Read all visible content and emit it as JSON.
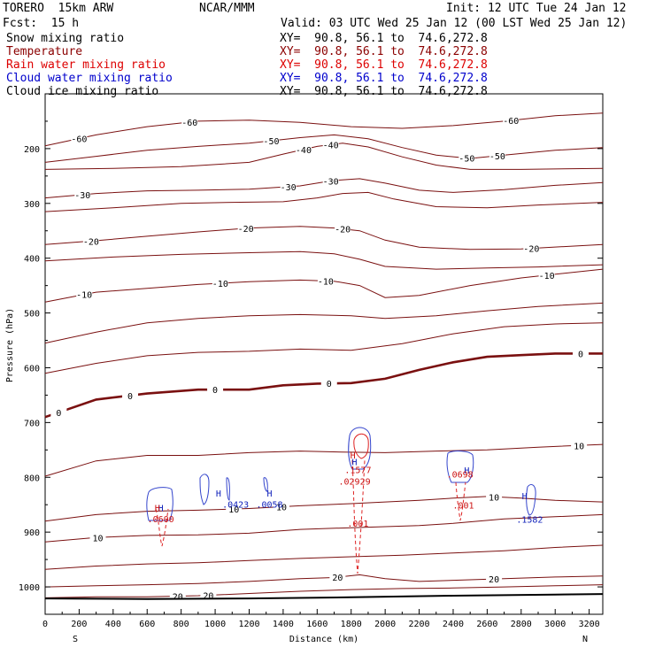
{
  "header": {
    "model": "TORERO  15km ARW",
    "center": "NCAR/MMM",
    "init": "Init: 12 UTC Tue 24 Jan 12",
    "fcst": "Fcst:  15 h",
    "valid": "Valid: 03 UTC Wed 25 Jan 12 (00 LST Wed 25 Jan 12)"
  },
  "fields": [
    {
      "label": "Snow mixing ratio",
      "xy": "XY=  90.8, 56.1 to  74.6,272.8",
      "color": "#000000"
    },
    {
      "label": "Temperature",
      "xy": "XY=  90.8, 56.1 to  74.6,272.8",
      "color": "#8b0000"
    },
    {
      "label": "Rain water mixing ratio",
      "xy": "XY=  90.8, 56.1 to  74.6,272.8",
      "color": "#dd0000"
    },
    {
      "label": "Cloud water mixing ratio",
      "xy": "XY=  90.8, 56.1 to  74.6,272.8",
      "color": "#0000cc"
    },
    {
      "label": "Cloud ice mixing ratio",
      "xy": "XY=  90.8, 56.1 to  74.6,272.8",
      "color": "#000000"
    }
  ],
  "chart_data": {
    "type": "line",
    "xlabel": "Distance (km)",
    "ylabel": "Pressure (hPa)",
    "xlim": [
      0,
      3280
    ],
    "ylim": [
      1050,
      100
    ],
    "xticks": [
      0,
      200,
      400,
      600,
      800,
      1000,
      1200,
      1400,
      1600,
      1800,
      2000,
      2200,
      2400,
      2600,
      2800,
      3000,
      3200
    ],
    "yticks": [
      200,
      300,
      400,
      500,
      600,
      700,
      800,
      900,
      1000
    ],
    "ends": {
      "left": "S",
      "right": "N"
    },
    "temperature_contours": [
      {
        "label": "-60",
        "points": [
          [
            0,
            195
          ],
          [
            300,
            175
          ],
          [
            600,
            160
          ],
          [
            900,
            150
          ],
          [
            1200,
            148
          ],
          [
            1500,
            152
          ],
          [
            1800,
            160
          ],
          [
            2100,
            163
          ],
          [
            2400,
            158
          ],
          [
            2700,
            150
          ],
          [
            3000,
            140
          ],
          [
            3280,
            135
          ]
        ],
        "labels": [
          [
            200,
            "-60"
          ],
          [
            850,
            "-60"
          ],
          [
            2740,
            "-60"
          ]
        ]
      },
      {
        "label": "-50",
        "points": [
          [
            0,
            225
          ],
          [
            300,
            214
          ],
          [
            600,
            203
          ],
          [
            900,
            196
          ],
          [
            1200,
            190
          ],
          [
            1500,
            180
          ],
          [
            1700,
            175
          ],
          [
            1900,
            182
          ],
          [
            2100,
            198
          ],
          [
            2300,
            212
          ],
          [
            2500,
            218
          ],
          [
            2700,
            212
          ],
          [
            3000,
            203
          ],
          [
            3280,
            198
          ]
        ],
        "labels": [
          [
            1330,
            "-50"
          ],
          [
            2480,
            "-50"
          ],
          [
            2660,
            "-50"
          ]
        ]
      },
      {
        "label": "-40",
        "points": [
          [
            0,
            238
          ],
          [
            400,
            236
          ],
          [
            800,
            233
          ],
          [
            1200,
            225
          ],
          [
            1400,
            210
          ],
          [
            1600,
            196
          ],
          [
            1750,
            190
          ],
          [
            1900,
            197
          ],
          [
            2100,
            215
          ],
          [
            2300,
            230
          ],
          [
            2500,
            238
          ],
          [
            2800,
            238
          ],
          [
            3280,
            236
          ]
        ],
        "labels": [
          [
            1520,
            "-40"
          ],
          [
            1680,
            "-40"
          ]
        ]
      },
      {
        "label": "-30",
        "points": [
          [
            0,
            290
          ],
          [
            300,
            282
          ],
          [
            600,
            277
          ],
          [
            900,
            276
          ],
          [
            1200,
            274
          ],
          [
            1500,
            268
          ],
          [
            1700,
            258
          ],
          [
            1850,
            255
          ],
          [
            2000,
            263
          ],
          [
            2200,
            276
          ],
          [
            2400,
            280
          ],
          [
            2700,
            275
          ],
          [
            3000,
            267
          ],
          [
            3280,
            262
          ]
        ],
        "labels": [
          [
            220,
            "-30"
          ],
          [
            1430,
            "-30"
          ],
          [
            1680,
            "-30"
          ]
        ]
      },
      {
        "label": "-30b",
        "points": [
          [
            0,
            315
          ],
          [
            400,
            308
          ],
          [
            800,
            300
          ],
          [
            1100,
            298
          ],
          [
            1400,
            297
          ],
          [
            1600,
            290
          ],
          [
            1750,
            282
          ],
          [
            1900,
            280
          ],
          [
            2050,
            292
          ],
          [
            2300,
            306
          ],
          [
            2600,
            308
          ],
          [
            2900,
            303
          ],
          [
            3280,
            298
          ]
        ],
        "labels": []
      },
      {
        "label": "-20",
        "points": [
          [
            0,
            375
          ],
          [
            300,
            368
          ],
          [
            600,
            360
          ],
          [
            900,
            352
          ],
          [
            1200,
            345
          ],
          [
            1500,
            342
          ],
          [
            1700,
            345
          ],
          [
            1850,
            350
          ],
          [
            2000,
            367
          ],
          [
            2200,
            380
          ],
          [
            2500,
            384
          ],
          [
            2800,
            383
          ],
          [
            3100,
            378
          ],
          [
            3280,
            375
          ]
        ],
        "labels": [
          [
            270,
            "-20"
          ],
          [
            1180,
            "-20"
          ],
          [
            1750,
            "-20"
          ],
          [
            2860,
            "-20"
          ]
        ]
      },
      {
        "label": "-20b",
        "points": [
          [
            0,
            405
          ],
          [
            400,
            398
          ],
          [
            800,
            393
          ],
          [
            1200,
            390
          ],
          [
            1500,
            388
          ],
          [
            1700,
            392
          ],
          [
            1850,
            402
          ],
          [
            2000,
            415
          ],
          [
            2300,
            420
          ],
          [
            2600,
            418
          ],
          [
            2900,
            416
          ],
          [
            3280,
            412
          ]
        ],
        "labels": []
      },
      {
        "label": "-10",
        "points": [
          [
            0,
            480
          ],
          [
            300,
            462
          ],
          [
            600,
            455
          ],
          [
            900,
            448
          ],
          [
            1200,
            443
          ],
          [
            1500,
            440
          ],
          [
            1700,
            442
          ],
          [
            1850,
            450
          ],
          [
            2000,
            472
          ],
          [
            2200,
            468
          ],
          [
            2500,
            450
          ],
          [
            2800,
            436
          ],
          [
            3280,
            420
          ]
        ],
        "labels": [
          [
            230,
            "-10"
          ],
          [
            1030,
            "-10"
          ],
          [
            1650,
            "-10"
          ],
          [
            2950,
            "-10"
          ]
        ]
      },
      {
        "label": "-10b",
        "points": [
          [
            0,
            555
          ],
          [
            300,
            535
          ],
          [
            600,
            518
          ],
          [
            900,
            510
          ],
          [
            1200,
            505
          ],
          [
            1500,
            503
          ],
          [
            1800,
            505
          ],
          [
            2000,
            510
          ],
          [
            2300,
            505
          ],
          [
            2600,
            496
          ],
          [
            2900,
            488
          ],
          [
            3280,
            482
          ]
        ],
        "labels": []
      },
      {
        "label": "0a",
        "points": [
          [
            0,
            610
          ],
          [
            300,
            592
          ],
          [
            600,
            578
          ],
          [
            900,
            572
          ],
          [
            1200,
            570
          ],
          [
            1500,
            566
          ],
          [
            1800,
            568
          ],
          [
            2100,
            556
          ],
          [
            2400,
            538
          ],
          [
            2700,
            525
          ],
          [
            3000,
            520
          ],
          [
            3280,
            518
          ]
        ],
        "labels": []
      },
      {
        "label": "0",
        "bold": true,
        "points": [
          [
            0,
            690
          ],
          [
            300,
            658
          ],
          [
            600,
            647
          ],
          [
            900,
            640
          ],
          [
            1200,
            640
          ],
          [
            1400,
            632
          ],
          [
            1600,
            629
          ],
          [
            1800,
            628
          ],
          [
            2000,
            620
          ],
          [
            2200,
            604
          ],
          [
            2400,
            590
          ],
          [
            2600,
            580
          ],
          [
            2800,
            577
          ],
          [
            3000,
            574
          ],
          [
            3280,
            574
          ]
        ],
        "labels": [
          [
            80,
            "0"
          ],
          [
            500,
            "0"
          ],
          [
            1000,
            "0"
          ],
          [
            1670,
            "0"
          ],
          [
            3150,
            "0"
          ]
        ]
      },
      {
        "label": "10",
        "points": [
          [
            0,
            798
          ],
          [
            300,
            770
          ],
          [
            600,
            760
          ],
          [
            900,
            760
          ],
          [
            1200,
            755
          ],
          [
            1500,
            752
          ],
          [
            1750,
            754
          ],
          [
            2000,
            755
          ],
          [
            2300,
            752
          ],
          [
            2600,
            750
          ],
          [
            2900,
            745
          ],
          [
            3280,
            740
          ]
        ],
        "labels": [
          [
            3140,
            "10"
          ]
        ]
      },
      {
        "label": "10b",
        "points": [
          [
            0,
            880
          ],
          [
            300,
            868
          ],
          [
            600,
            862
          ],
          [
            900,
            860
          ],
          [
            1200,
            857
          ],
          [
            1500,
            852
          ],
          [
            1800,
            848
          ],
          [
            2000,
            845
          ],
          [
            2200,
            842
          ],
          [
            2400,
            838
          ],
          [
            2600,
            835
          ],
          [
            2800,
            838
          ],
          [
            3000,
            842
          ],
          [
            3280,
            845
          ]
        ],
        "labels": [
          [
            1110,
            "10"
          ],
          [
            1390,
            "10"
          ],
          [
            2640,
            "10"
          ]
        ]
      },
      {
        "label": "10c",
        "points": [
          [
            0,
            918
          ],
          [
            300,
            910
          ],
          [
            600,
            906
          ],
          [
            900,
            905
          ],
          [
            1200,
            902
          ],
          [
            1500,
            895
          ],
          [
            1800,
            892
          ],
          [
            2000,
            890
          ],
          [
            2200,
            888
          ],
          [
            2400,
            884
          ],
          [
            2700,
            876
          ],
          [
            3000,
            872
          ],
          [
            3280,
            868
          ]
        ],
        "labels": [
          [
            310,
            "10"
          ]
        ]
      },
      {
        "label": "20",
        "points": [
          [
            0,
            968
          ],
          [
            300,
            962
          ],
          [
            600,
            958
          ],
          [
            900,
            956
          ],
          [
            1200,
            952
          ],
          [
            1500,
            948
          ],
          [
            1800,
            945
          ],
          [
            2100,
            942
          ],
          [
            2400,
            938
          ],
          [
            2700,
            934
          ],
          [
            3000,
            928
          ],
          [
            3280,
            924
          ]
        ],
        "labels": []
      },
      {
        "label": "20b",
        "points": [
          [
            0,
            1000
          ],
          [
            300,
            998
          ],
          [
            600,
            996
          ],
          [
            900,
            994
          ],
          [
            1200,
            990
          ],
          [
            1500,
            985
          ],
          [
            1700,
            983
          ],
          [
            1850,
            978
          ],
          [
            2000,
            985
          ],
          [
            2200,
            990
          ],
          [
            2400,
            988
          ],
          [
            2700,
            985
          ],
          [
            3000,
            982
          ],
          [
            3280,
            980
          ]
        ],
        "labels": [
          [
            1720,
            "20"
          ],
          [
            2640,
            "20"
          ]
        ]
      },
      {
        "label": "20c",
        "points": [
          [
            0,
            1020
          ],
          [
            300,
            1018
          ],
          [
            600,
            1018
          ],
          [
            900,
            1016
          ],
          [
            1200,
            1012
          ],
          [
            1500,
            1008
          ],
          [
            1800,
            1005
          ],
          [
            2100,
            1003
          ],
          [
            2400,
            1002
          ],
          [
            2700,
            1000
          ],
          [
            3000,
            998
          ],
          [
            3280,
            996
          ]
        ],
        "labels": [
          [
            780,
            "20"
          ],
          [
            960,
            "20"
          ]
        ]
      }
    ],
    "terrain": {
      "points": [
        [
          0,
          1021
        ],
        [
          600,
          1022
        ],
        [
          1200,
          1021
        ],
        [
          1800,
          1019
        ],
        [
          2400,
          1016
        ],
        [
          3000,
          1014
        ],
        [
          3280,
          1013
        ]
      ]
    },
    "cloud_water_labels": [
      {
        "x": 680,
        "p": 862,
        "text": "H"
      },
      {
        "x": 1020,
        "p": 835,
        "text": "H"
      },
      {
        "x": 1120,
        "p": 855,
        "text": ".0423"
      },
      {
        "x": 1320,
        "p": 835,
        "text": "H"
      },
      {
        "x": 1320,
        "p": 855,
        "text": ".0058"
      },
      {
        "x": 1820,
        "p": 778,
        "text": "H"
      },
      {
        "x": 2480,
        "p": 793,
        "text": "H"
      },
      {
        "x": 2820,
        "p": 840,
        "text": "H"
      },
      {
        "x": 2850,
        "p": 883,
        "text": ".1582"
      }
    ],
    "rain_labels": [
      {
        "x": 660,
        "p": 862,
        "text": "H"
      },
      {
        "x": 680,
        "p": 882,
        "text": ".0600"
      },
      {
        "x": 1810,
        "p": 766,
        "text": "H"
      },
      {
        "x": 1840,
        "p": 792,
        "text": ".1577"
      },
      {
        "x": 1820,
        "p": 813,
        "text": ".02929"
      },
      {
        "x": 1840,
        "p": 890,
        "text": ".001"
      },
      {
        "x": 2440,
        "p": 800,
        "text": ".0698"
      },
      {
        "x": 2460,
        "p": 857,
        "text": ".001"
      }
    ]
  }
}
